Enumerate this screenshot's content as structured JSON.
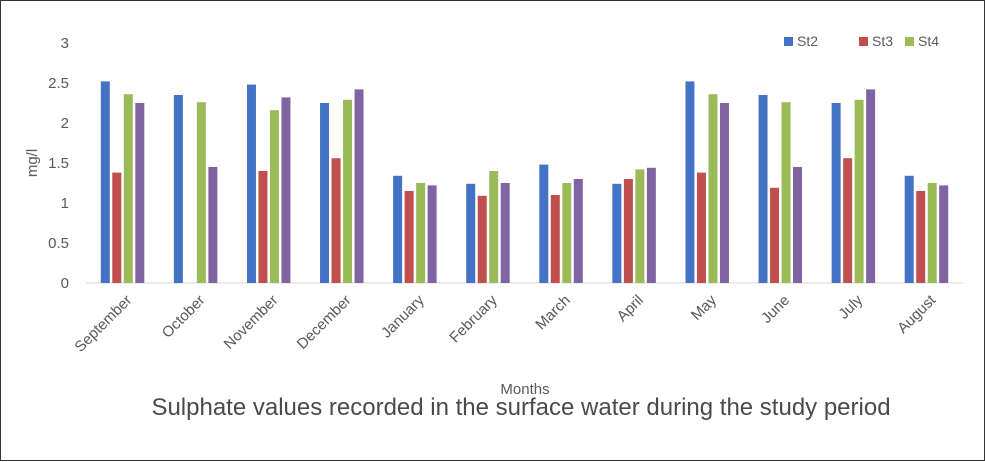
{
  "chart_data": {
    "type": "bar",
    "title": "",
    "xlabel": "Months",
    "ylabel": "mg/l",
    "ylim": [
      0,
      3
    ],
    "yticks": [
      "0",
      "0.5",
      "1",
      "1.5",
      "2",
      "2.5",
      "3"
    ],
    "categories": [
      "September",
      "October",
      "November",
      "December",
      "January",
      "February",
      "March",
      "April",
      "May",
      "June",
      "July",
      "August"
    ],
    "series": [
      {
        "name": "St2",
        "color": "#4472c4",
        "values": [
          2.52,
          2.35,
          2.48,
          2.25,
          1.34,
          1.24,
          1.48,
          1.24,
          2.52,
          2.35,
          2.25,
          1.34
        ]
      },
      {
        "name": "St3",
        "color": "#c0504d",
        "values": [
          1.38,
          0,
          1.4,
          1.56,
          1.15,
          1.09,
          1.1,
          1.3,
          1.38,
          1.19,
          1.56,
          1.15
        ]
      },
      {
        "name": "St4",
        "color": "#9bbb59",
        "values": [
          2.36,
          2.26,
          2.16,
          2.29,
          1.25,
          1.4,
          1.25,
          1.42,
          2.36,
          2.26,
          2.29,
          1.25
        ]
      },
      {
        "color": "#8064a2",
        "values": [
          2.25,
          1.45,
          2.32,
          2.42,
          1.22,
          1.25,
          1.3,
          1.44,
          2.25,
          1.45,
          2.42,
          1.22
        ]
      }
    ],
    "legend": [
      "St2",
      "St3",
      "St4"
    ],
    "legend_position": "top-right",
    "grid": false
  },
  "caption": "Sulphate values recorded in the surface water during the study period"
}
